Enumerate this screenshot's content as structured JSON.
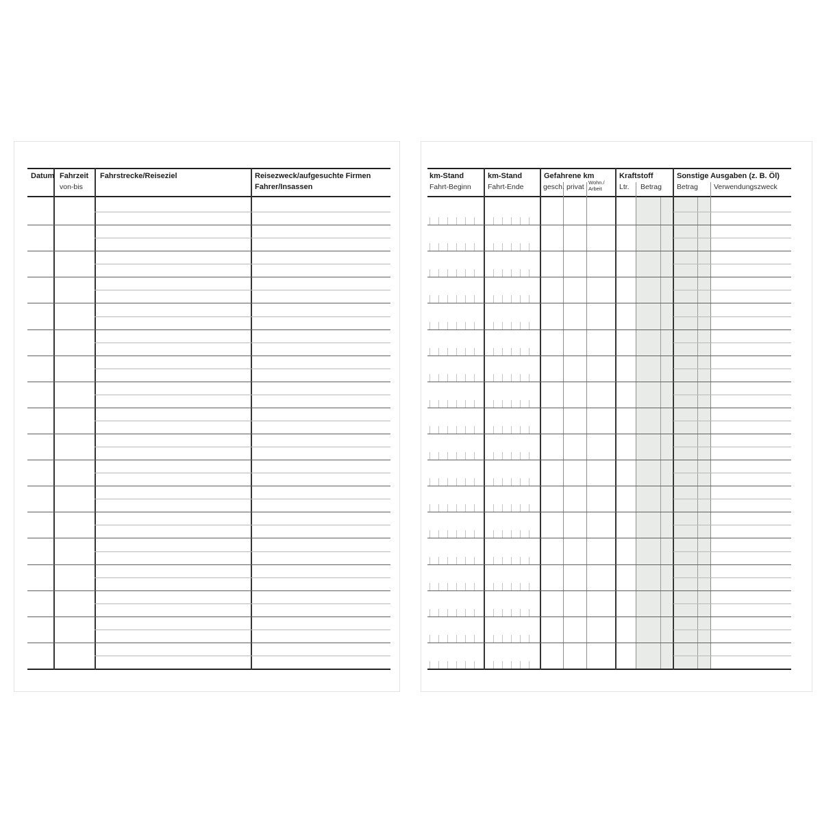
{
  "left_table": {
    "headers": {
      "datum": "Datum",
      "fahrzeit": "Fahrzeit",
      "fahrzeit_sub": "von-bis",
      "fahrstrecke": "Fahrstrecke/Reiseziel",
      "reisezweck_line1": "Reisezweck/aufgesuchte Firmen",
      "reisezweck_line2": "Fahrer/Insassen"
    },
    "row_count": 18
  },
  "right_table": {
    "headers": {
      "km_stand_beginn": "km-Stand",
      "km_stand_beginn_sub": "Fahrt-Beginn",
      "km_stand_ende": "km-Stand",
      "km_stand_ende_sub": "Fahrt-Ende",
      "gefahrene_km": "Gefahrene km",
      "gesch": "gesch.",
      "privat": "privat",
      "wohn_arbeit_line1": "Wohn./",
      "wohn_arbeit_line2": "Arbeit",
      "kraftstoff": "Kraftstoff",
      "ltr": "Ltr.",
      "kraftstoff_betrag": "Betrag",
      "sonstige_ausgaben": "Sonstige Ausgaben (z. B. Öl)",
      "sonstige_betrag": "Betrag",
      "verwendungszweck": "Verwendungszweck"
    },
    "row_count": 18,
    "digit_ticks_beginn": 6,
    "digit_ticks_ende": 5
  },
  "colors": {
    "shading": "#e9ebe9",
    "rule_dark": "#1f1f1f",
    "vertical_dark": "#333333",
    "row_divider": "#606060",
    "light_line": "#b9b9b9",
    "sub_vertical": "#8d8d8d",
    "inner_vertical": "#9b9b9b",
    "tick": "#c4c4c4",
    "page_edge": "#e3e3e3"
  }
}
